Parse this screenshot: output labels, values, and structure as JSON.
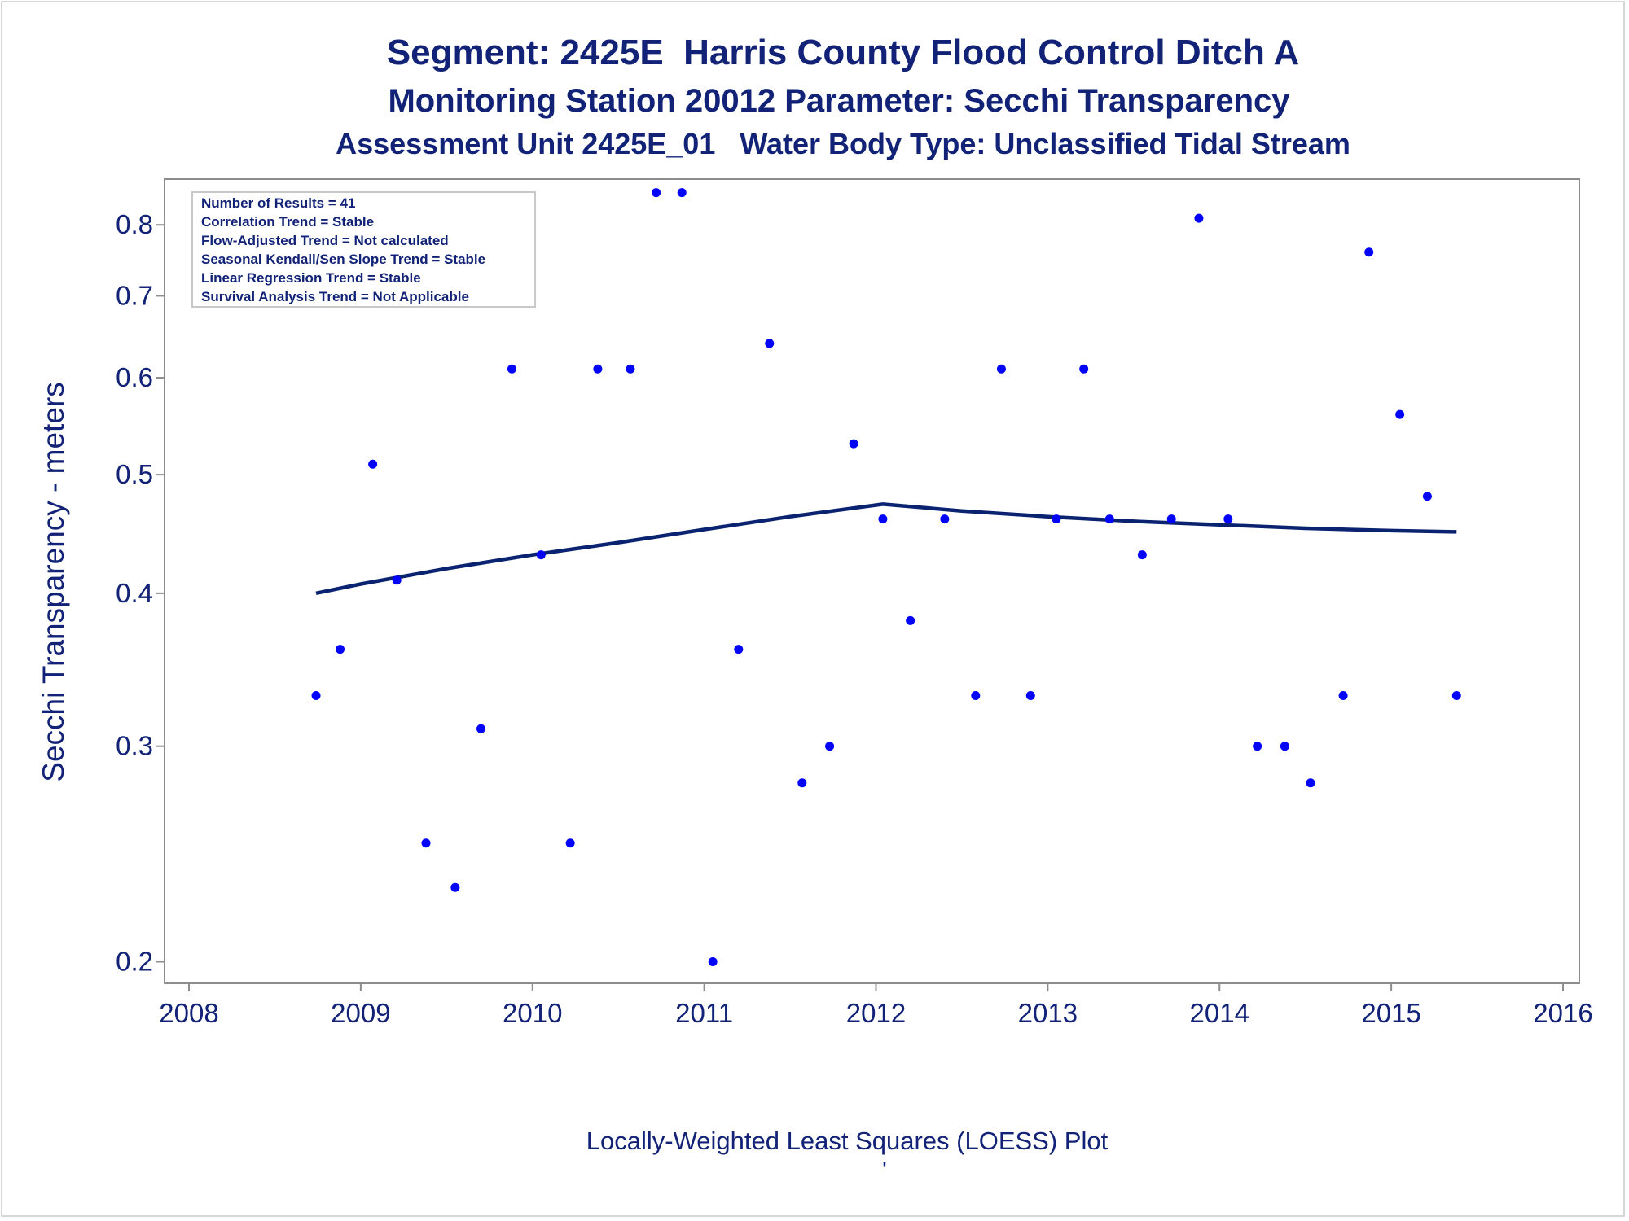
{
  "titles": {
    "line1": "Segment: 2425E  Harris County Flood Control Ditch A",
    "line2": "Monitoring Station 20012 Parameter: Secchi Transparency",
    "line3": "Assessment Unit 2425E_01   Water Body Type: Unclassified Tidal Stream"
  },
  "stats_box": [
    "Number of Results = 41",
    "Correlation Trend = Stable",
    "Flow-Adjusted Trend = Not calculated",
    "Seasonal Kendall/Sen Slope Trend = Stable",
    "Linear Regression Trend = Stable",
    "Survival Analysis Trend = Not Applicable"
  ],
  "footnote": "Locally-Weighted Least Squares (LOESS) Plot",
  "footnote_mark": "'",
  "colors": {
    "text": "#112277",
    "points": "#0000ff",
    "loess_line": "#0a2370",
    "axis": "#8c8c8c"
  },
  "chart_data": {
    "type": "scatter",
    "xlabel": "",
    "ylabel": "Secchi Transparency - meters",
    "xlim": [
      2008,
      2016
    ],
    "xticks": [
      "2008",
      "2009",
      "2010",
      "2011",
      "2012",
      "2013",
      "2014",
      "2015",
      "2016"
    ],
    "ylim": [
      0.195,
      0.86
    ],
    "yscale": "log",
    "yticks": [
      "0.2",
      "0.3",
      "0.4",
      "0.5",
      "0.6",
      "0.7",
      "0.8"
    ],
    "grid": false,
    "points": [
      {
        "x": 2008.74,
        "y": 0.33
      },
      {
        "x": 2008.88,
        "y": 0.36
      },
      {
        "x": 2009.07,
        "y": 0.51
      },
      {
        "x": 2009.21,
        "y": 0.41
      },
      {
        "x": 2009.38,
        "y": 0.25
      },
      {
        "x": 2009.55,
        "y": 0.23
      },
      {
        "x": 2009.7,
        "y": 0.31
      },
      {
        "x": 2009.88,
        "y": 0.61
      },
      {
        "x": 2010.05,
        "y": 0.43
      },
      {
        "x": 2010.22,
        "y": 0.25
      },
      {
        "x": 2010.38,
        "y": 0.61
      },
      {
        "x": 2010.57,
        "y": 0.61
      },
      {
        "x": 2010.72,
        "y": 0.85
      },
      {
        "x": 2010.87,
        "y": 0.85
      },
      {
        "x": 2011.05,
        "y": 0.2
      },
      {
        "x": 2011.2,
        "y": 0.36
      },
      {
        "x": 2011.38,
        "y": 0.64
      },
      {
        "x": 2011.57,
        "y": 0.28
      },
      {
        "x": 2011.73,
        "y": 0.3
      },
      {
        "x": 2011.87,
        "y": 0.53
      },
      {
        "x": 2012.04,
        "y": 0.46
      },
      {
        "x": 2012.2,
        "y": 0.38
      },
      {
        "x": 2012.4,
        "y": 0.46
      },
      {
        "x": 2012.58,
        "y": 0.33
      },
      {
        "x": 2012.73,
        "y": 0.61
      },
      {
        "x": 2012.9,
        "y": 0.33
      },
      {
        "x": 2013.05,
        "y": 0.46
      },
      {
        "x": 2013.21,
        "y": 0.61
      },
      {
        "x": 2013.36,
        "y": 0.46
      },
      {
        "x": 2013.55,
        "y": 0.43
      },
      {
        "x": 2013.72,
        "y": 0.46
      },
      {
        "x": 2013.88,
        "y": 0.81
      },
      {
        "x": 2014.05,
        "y": 0.46
      },
      {
        "x": 2014.22,
        "y": 0.3
      },
      {
        "x": 2014.38,
        "y": 0.3
      },
      {
        "x": 2014.53,
        "y": 0.28
      },
      {
        "x": 2014.72,
        "y": 0.33
      },
      {
        "x": 2014.87,
        "y": 0.76
      },
      {
        "x": 2015.05,
        "y": 0.56
      },
      {
        "x": 2015.21,
        "y": 0.48
      },
      {
        "x": 2015.38,
        "y": 0.33
      }
    ],
    "loess": [
      {
        "x": 2008.74,
        "y": 0.4
      },
      {
        "x": 2009.0,
        "y": 0.407
      },
      {
        "x": 2009.5,
        "y": 0.419
      },
      {
        "x": 2010.0,
        "y": 0.43
      },
      {
        "x": 2010.5,
        "y": 0.44
      },
      {
        "x": 2011.0,
        "y": 0.451
      },
      {
        "x": 2011.5,
        "y": 0.462
      },
      {
        "x": 2012.04,
        "y": 0.473
      },
      {
        "x": 2012.5,
        "y": 0.467
      },
      {
        "x": 2013.0,
        "y": 0.462
      },
      {
        "x": 2013.5,
        "y": 0.458
      },
      {
        "x": 2014.0,
        "y": 0.455
      },
      {
        "x": 2014.5,
        "y": 0.452
      },
      {
        "x": 2015.0,
        "y": 0.45
      },
      {
        "x": 2015.38,
        "y": 0.449
      }
    ]
  }
}
